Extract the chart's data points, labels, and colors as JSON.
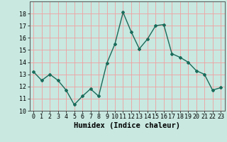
{
  "x": [
    0,
    1,
    2,
    3,
    4,
    5,
    6,
    7,
    8,
    9,
    10,
    11,
    12,
    13,
    14,
    15,
    16,
    17,
    18,
    19,
    20,
    21,
    22,
    23
  ],
  "y": [
    13.2,
    12.5,
    13.0,
    12.5,
    11.7,
    10.5,
    11.2,
    11.8,
    11.2,
    13.9,
    15.5,
    18.1,
    16.5,
    15.1,
    15.9,
    17.0,
    17.1,
    14.7,
    14.4,
    14.0,
    13.3,
    13.0,
    11.7,
    11.9
  ],
  "line_color": "#1a6b5a",
  "marker": "D",
  "marker_size": 2.0,
  "bg_color": "#c8e8e0",
  "grid_color": "#f0a0a0",
  "xlabel": "Humidex (Indice chaleur)",
  "ylim": [
    10,
    19
  ],
  "xlim": [
    -0.5,
    23.5
  ],
  "yticks": [
    10,
    11,
    12,
    13,
    14,
    15,
    16,
    17,
    18
  ],
  "xticks": [
    0,
    1,
    2,
    3,
    4,
    5,
    6,
    7,
    8,
    9,
    10,
    11,
    12,
    13,
    14,
    15,
    16,
    17,
    18,
    19,
    20,
    21,
    22,
    23
  ],
  "tick_fontsize": 6.0,
  "xlabel_fontsize": 7.5,
  "linewidth": 1.0
}
